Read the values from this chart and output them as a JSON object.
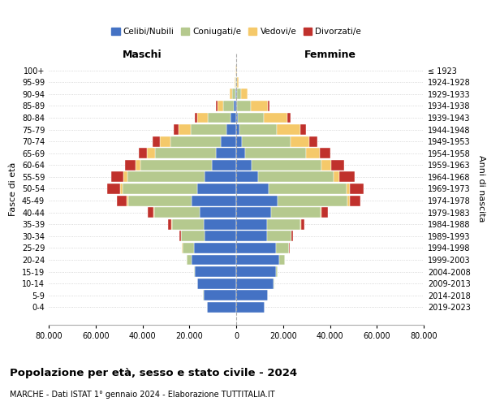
{
  "age_groups": [
    "0-4",
    "5-9",
    "10-14",
    "15-19",
    "20-24",
    "25-29",
    "30-34",
    "35-39",
    "40-44",
    "45-49",
    "50-54",
    "55-59",
    "60-64",
    "65-69",
    "70-74",
    "75-79",
    "80-84",
    "85-89",
    "90-94",
    "95-99",
    "100+"
  ],
  "birth_years": [
    "2019-2023",
    "2014-2018",
    "2009-2013",
    "2004-2008",
    "1999-2003",
    "1994-1998",
    "1989-1993",
    "1984-1988",
    "1979-1983",
    "1974-1978",
    "1969-1973",
    "1964-1968",
    "1959-1963",
    "1954-1958",
    "1949-1953",
    "1944-1948",
    "1939-1943",
    "1934-1938",
    "1929-1933",
    "1924-1928",
    "≤ 1923"
  ],
  "colors": {
    "celibe": "#4472C4",
    "coniugato": "#B5C98E",
    "vedovo": "#F5C96A",
    "divorziato": "#C0312C"
  },
  "males": {
    "celibe": [
      12500,
      14000,
      16500,
      17500,
      19000,
      18000,
      13500,
      14000,
      15500,
      19000,
      16500,
      13500,
      10500,
      8500,
      6500,
      4000,
      2500,
      1000,
      400,
      150,
      80
    ],
    "coniugato": [
      20,
      50,
      200,
      500,
      2000,
      5000,
      10000,
      13500,
      19500,
      27000,
      32000,
      33000,
      30500,
      26000,
      21500,
      15500,
      9500,
      4500,
      1400,
      280,
      80
    ],
    "vedovo": [
      1,
      2,
      5,
      10,
      20,
      50,
      100,
      200,
      400,
      800,
      1000,
      1500,
      2000,
      3500,
      4500,
      5000,
      4500,
      2500,
      800,
      200,
      50
    ],
    "divorziato": [
      2,
      5,
      10,
      30,
      100,
      300,
      800,
      1500,
      2500,
      4000,
      5500,
      5500,
      4500,
      3500,
      3000,
      2000,
      1200,
      500,
      200,
      80,
      20
    ]
  },
  "females": {
    "nubile": [
      12000,
      13500,
      16000,
      17000,
      18500,
      17000,
      13000,
      13000,
      15000,
      17500,
      14000,
      9500,
      6500,
      3800,
      2300,
      1300,
      800,
      400,
      200,
      80,
      30
    ],
    "coniugata": [
      20,
      60,
      200,
      600,
      2200,
      5500,
      10500,
      14500,
      21000,
      30000,
      33000,
      32000,
      30000,
      26000,
      21000,
      16000,
      11000,
      6000,
      2000,
      400,
      80
    ],
    "vedova": [
      1,
      2,
      5,
      10,
      20,
      50,
      100,
      200,
      500,
      1000,
      1500,
      2500,
      4000,
      6000,
      8000,
      10000,
      10000,
      7000,
      2500,
      500,
      100
    ],
    "divorziata": [
      2,
      5,
      10,
      30,
      100,
      300,
      800,
      1500,
      2500,
      4500,
      6000,
      6500,
      5500,
      4500,
      3500,
      2500,
      1500,
      800,
      300,
      100,
      20
    ]
  },
  "title_main": "Popolazione per età, sesso e stato civile - 2024",
  "subtitle": "MARCHE - Dati ISTAT 1° gennaio 2024 - Elaborazione TUTTITALIA.IT",
  "label_maschi": "Maschi",
  "label_femmine": "Femmine",
  "ylabel_left": "Fasce di età",
  "ylabel_right": "Anni di nascita",
  "xlim": 80000,
  "tick_vals": [
    -80000,
    -60000,
    -40000,
    -20000,
    0,
    20000,
    40000,
    60000,
    80000
  ],
  "tick_labels": [
    "80.000",
    "60.000",
    "40.000",
    "20.000",
    "0",
    "20.000",
    "40.000",
    "60.000",
    "80.000"
  ],
  "background_color": "#ffffff",
  "grid_color": "#cccccc"
}
